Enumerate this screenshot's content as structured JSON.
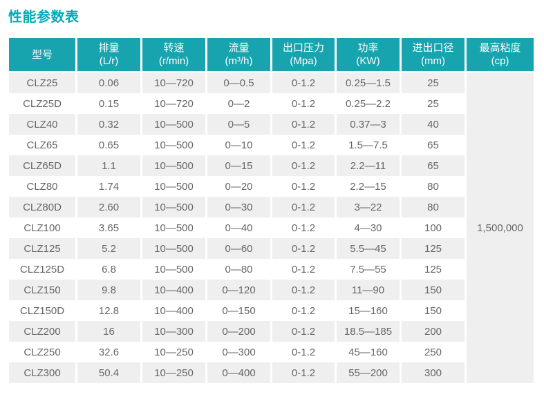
{
  "page": {
    "title": "性能参数表"
  },
  "table": {
    "columns": [
      {
        "key": "model",
        "name": "型号",
        "unit": ""
      },
      {
        "key": "displacement",
        "name": "排量",
        "unit": "(L/r)"
      },
      {
        "key": "speed",
        "name": "转速",
        "unit": "(r/min)"
      },
      {
        "key": "flow",
        "name": "流量",
        "unit": "(m³/h)"
      },
      {
        "key": "pressure",
        "name": "出口压力",
        "unit": "(Mpa)"
      },
      {
        "key": "power",
        "name": "功率",
        "unit": "(KW)"
      },
      {
        "key": "diameter",
        "name": "进出口径",
        "unit": "(mm)"
      },
      {
        "key": "viscosity",
        "name": "最高粘度",
        "unit": "(cp)"
      }
    ],
    "rows": [
      [
        "CLZ25",
        "0.06",
        "10—720",
        "0—0.5",
        "0-1.2",
        "0.25—1.5",
        "25"
      ],
      [
        "CLZ25D",
        "0.15",
        "10—720",
        "0—2",
        "0-1.2",
        "0.25—2.2",
        "25"
      ],
      [
        "CLZ40",
        "0.32",
        "10—500",
        "0—5",
        "0-1.2",
        "0.37—3",
        "40"
      ],
      [
        "CLZ65",
        "0.65",
        "10—500",
        "0—10",
        "0-1.2",
        "1.5—7.5",
        "65"
      ],
      [
        "CLZ65D",
        "1.1",
        "10—500",
        "0—15",
        "0-1.2",
        "2.2—11",
        "65"
      ],
      [
        "CLZ80",
        "1.74",
        "10—500",
        "0—20",
        "0-1.2",
        "2.2—15",
        "80"
      ],
      [
        "CLZ80D",
        "2.60",
        "10—500",
        "0—30",
        "0-1.2",
        "3—22",
        "80"
      ],
      [
        "CLZ100",
        "3.65",
        "10—500",
        "0—40",
        "0-1.2",
        "4—30",
        "100"
      ],
      [
        "CLZ125",
        "5.2",
        "10—500",
        "0—60",
        "0-1.2",
        "5.5—45",
        "125"
      ],
      [
        "CLZ125D",
        "6.8",
        "10—500",
        "0—80",
        "0-1.2",
        "7.5—55",
        "125"
      ],
      [
        "CLZ150",
        "9.8",
        "10—400",
        "0—120",
        "0-1.2",
        "11—90",
        "150"
      ],
      [
        "CLZ150D",
        "12.8",
        "10—400",
        "0—150",
        "0-1.2",
        "15—160",
        "150"
      ],
      [
        "CLZ200",
        "16",
        "10—300",
        "0—200",
        "0-1.2",
        "18.5—185",
        "200"
      ],
      [
        "CLZ250",
        "32.6",
        "10—250",
        "0—300",
        "0-1.2",
        "45—160",
        "250"
      ],
      [
        "CLZ300",
        "50.4",
        "10—250",
        "0—400",
        "0-1.2",
        "55—200",
        "300"
      ]
    ],
    "max_viscosity_value": "1,500,000"
  },
  "colors": {
    "header_background": "#17a4ae",
    "title_text": "#00abb9",
    "row_stripe": "#efefef",
    "body_text": "#666666",
    "header_text": "#ffffff"
  }
}
